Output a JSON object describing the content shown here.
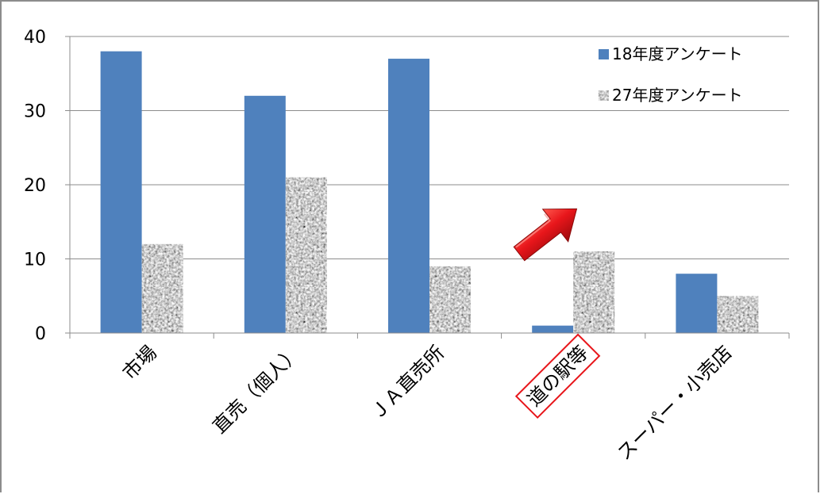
{
  "chart_data": {
    "type": "bar",
    "categories": [
      "市場",
      "直売（個人）",
      "ＪＡ直売所",
      "道の駅等",
      "スーパー・小売店"
    ],
    "series": [
      {
        "name": "18年度アンケート",
        "values": [
          38,
          32,
          37,
          1,
          8
        ],
        "color": "#4f81bd",
        "pattern": "solid"
      },
      {
        "name": "27年度アンケート",
        "values": [
          12,
          21,
          9,
          11,
          5
        ],
        "color": "#9a9a9a",
        "pattern": "granite"
      }
    ],
    "ylim": [
      0,
      40
    ],
    "yticks": [
      0,
      10,
      20,
      30,
      40
    ],
    "grid": true,
    "legend": "top-right",
    "highlighted_category": "道の駅等",
    "annotation": {
      "type": "arrow",
      "color": "#e8161b",
      "direction": "up-right"
    }
  }
}
